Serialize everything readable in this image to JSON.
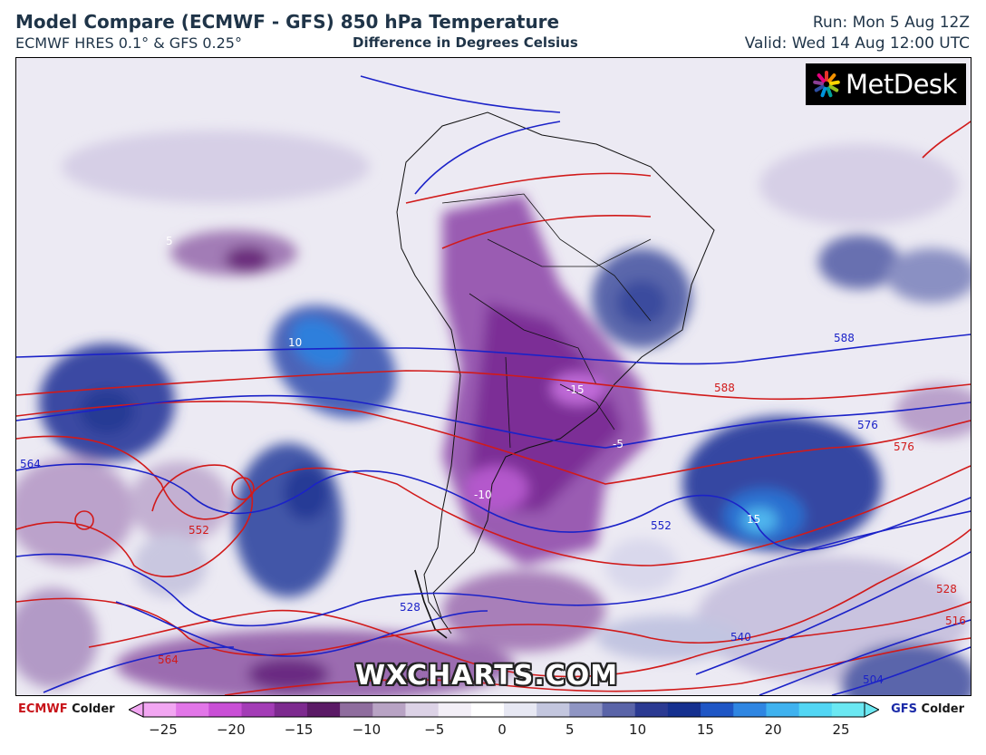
{
  "header": {
    "title": "Model Compare (ECMWF - GFS) 850 hPa Temperature",
    "subtitle": "ECMWF HRES 0.1° & GFS 0.25°",
    "difference_label": "Difference in Degrees Celsius",
    "run": "Run: Mon 5 Aug 12Z",
    "valid": "Valid: Wed 14 Aug 12:00 UTC"
  },
  "logo": {
    "text": "MetDesk"
  },
  "watermark": "WXCHARTS.COM",
  "colorbar": {
    "left_model": "ECMWF",
    "left_word": "Colder",
    "right_model": "GFS",
    "right_word": "Colder",
    "ticks": [
      "−25",
      "−20",
      "−15",
      "−10",
      "−5",
      "0",
      "5",
      "10",
      "15",
      "20",
      "25"
    ],
    "colors": [
      "#f2a6f2",
      "#e276e8",
      "#c94fd6",
      "#a33cb6",
      "#7d2a8f",
      "#5b1a66",
      "#8f6d9e",
      "#b8a3c4",
      "#dcd2e6",
      "#f3eff7",
      "#ffffff",
      "#e7e8f3",
      "#c3c6de",
      "#8f95c3",
      "#5a64a8",
      "#2b3a92",
      "#15308f",
      "#1f56c5",
      "#2f86e2",
      "#3fb2ef",
      "#52d6f4",
      "#6be8f2"
    ],
    "left_color": "#c8141a",
    "right_color": "#1a2aa8"
  },
  "map_labels": [
    {
      "text": "5",
      "color": "white"
    },
    {
      "text": "10",
      "color": "white"
    },
    {
      "text": "-15",
      "color": "white"
    },
    {
      "text": "-10",
      "color": "white"
    },
    {
      "text": "15",
      "color": "white"
    },
    {
      "text": "588",
      "color": "blue"
    },
    {
      "text": "588",
      "color": "red"
    },
    {
      "text": "576",
      "color": "blue"
    },
    {
      "text": "576",
      "color": "red"
    },
    {
      "text": "564",
      "color": "blue"
    },
    {
      "text": "564",
      "color": "red"
    },
    {
      "text": "552",
      "color": "blue"
    },
    {
      "text": "552",
      "color": "red"
    },
    {
      "text": "540",
      "color": "blue"
    },
    {
      "text": "528",
      "color": "blue"
    },
    {
      "text": "528",
      "color": "red"
    },
    {
      "text": "516",
      "color": "red"
    },
    {
      "text": "504",
      "color": "blue"
    },
    {
      "text": "-5",
      "color": "white"
    }
  ]
}
